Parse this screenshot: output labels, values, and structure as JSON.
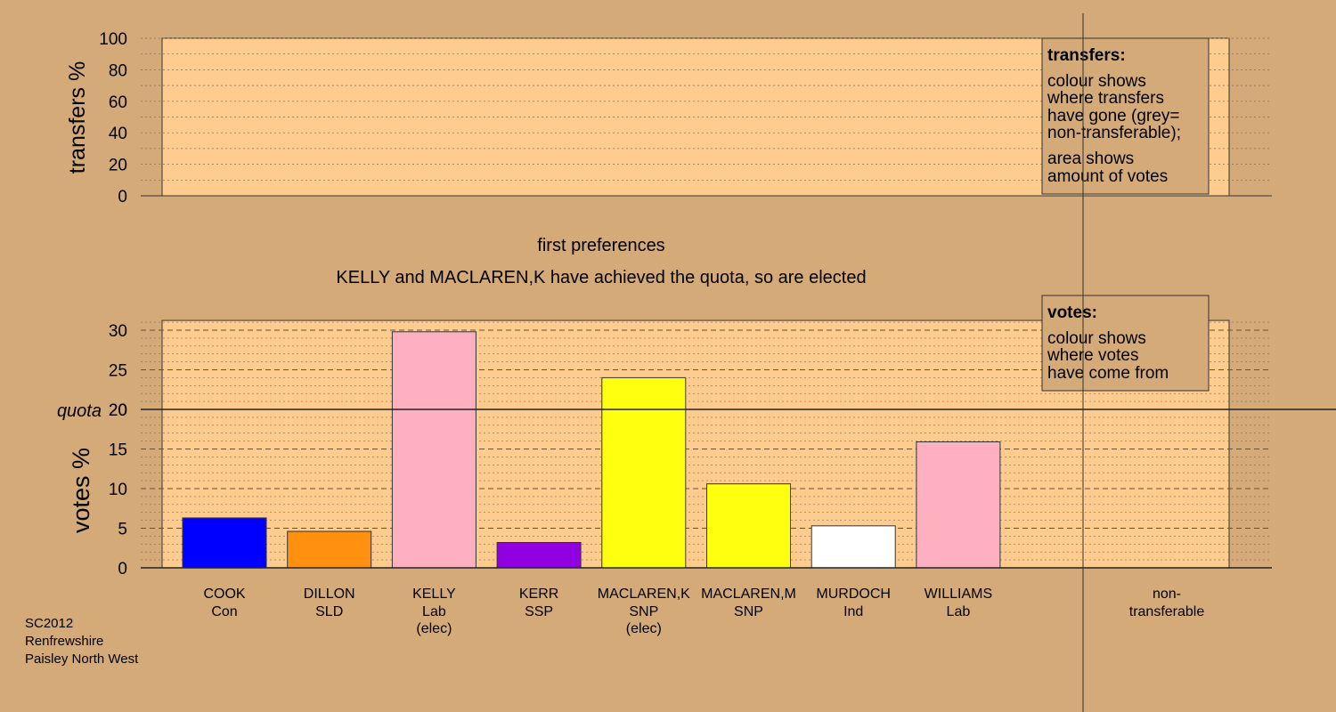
{
  "colors": {
    "background": "#D4AA78",
    "plot_bg": "#FFCC90",
    "legend_bg": "#D4AA78",
    "bar_stroke": "#333333"
  },
  "top_chart": {
    "ylabel": "transfers %",
    "ylim": [
      0,
      100
    ],
    "yticks": [
      "0",
      "20",
      "40",
      "60",
      "80",
      "100"
    ],
    "legend": {
      "title": "transfers:",
      "lines1": [
        "colour shows",
        "where transfers",
        "have gone (grey=",
        "non-transferable);"
      ],
      "lines2": [
        "area shows",
        "amount of votes"
      ]
    }
  },
  "stage_title": "first preferences",
  "stage_note": "KELLY and MACLAREN,K have achieved the quota, so are elected",
  "chart_data": {
    "type": "bar",
    "ylabel": "votes %",
    "ylim": [
      0,
      30
    ],
    "yticks": [
      "0",
      "5",
      "10",
      "15",
      "20",
      "25",
      "30"
    ],
    "quota": 20,
    "quota_label": "quota",
    "categories": [
      {
        "name": "COOK",
        "party": "Con",
        "status": ""
      },
      {
        "name": "DILLON",
        "party": "SLD",
        "status": ""
      },
      {
        "name": "KELLY",
        "party": "Lab",
        "status": "(elec)"
      },
      {
        "name": "KERR",
        "party": "SSP",
        "status": ""
      },
      {
        "name": "MACLAREN,K",
        "party": "SNP",
        "status": "(elec)"
      },
      {
        "name": "MACLAREN,M",
        "party": "SNP",
        "status": ""
      },
      {
        "name": "MURDOCH",
        "party": "Ind",
        "status": ""
      },
      {
        "name": "WILLIAMS",
        "party": "Lab",
        "status": ""
      }
    ],
    "values": [
      6.3,
      4.6,
      29.8,
      3.2,
      24.0,
      10.6,
      5.3,
      15.9
    ],
    "bar_colors": [
      "#0000FF",
      "#FF9010",
      "#FFB0C0",
      "#9000E0",
      "#FFFF10",
      "#FFFF10",
      "#FFFFFF",
      "#FFB0C0"
    ],
    "nontransferable_label": [
      "non-",
      "transferable"
    ],
    "legend": {
      "title": "votes:",
      "lines": [
        "colour shows",
        "where votes",
        "have come from"
      ]
    }
  },
  "footer": {
    "lines": [
      "SC2012",
      "Renfrewshire",
      "Paisley North West"
    ]
  }
}
